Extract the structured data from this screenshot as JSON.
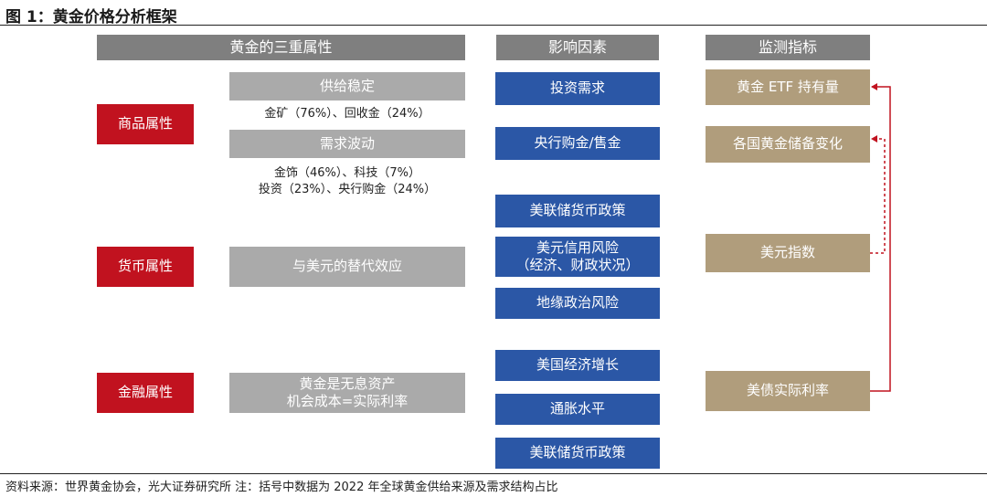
{
  "title": "图 1：黄金价格分析框架",
  "headers": {
    "attributes": "黄金的三重属性",
    "factors": "影响因素",
    "indicators": "监测指标"
  },
  "attributes": {
    "commodity": "商品属性",
    "currency": "货币属性",
    "financial": "金融属性"
  },
  "details": {
    "supply_stable": "供给稳定",
    "supply_note": "金矿（76%）、回收金（24%）",
    "demand_fluctuation": "需求波动",
    "demand_note": "金饰（46%）、科技（7%）\n投资（23%）、央行购金（24%）",
    "dollar_substitute": "与美元的替代效应",
    "no_yield_asset": "黄金是无息资产\n机会成本=实际利率"
  },
  "factors": [
    "投资需求",
    "央行购金/售金",
    "美联储货币政策",
    "美元信用风险\n（经济、财政状况）",
    "地缘政治风险",
    "美国经济增长",
    "通胀水平",
    "美联储货币政策"
  ],
  "indicators": [
    "黄金 ETF 持有量",
    "各国黄金储备变化",
    "美元指数",
    "美债实际利率"
  ],
  "footer": "资料来源：世界黄金协会，光大证券研究所 注：括号中数据为 2022 年全球黄金供给来源及需求结构占比",
  "colors": {
    "header_grey": "#7f7f7f",
    "attribute_red": "#c1121f",
    "detail_grey": "#aaaaaa",
    "factor_blue": "#2b57a6",
    "indicator_tan": "#b09d7c",
    "connector_red": "#c1121f"
  }
}
